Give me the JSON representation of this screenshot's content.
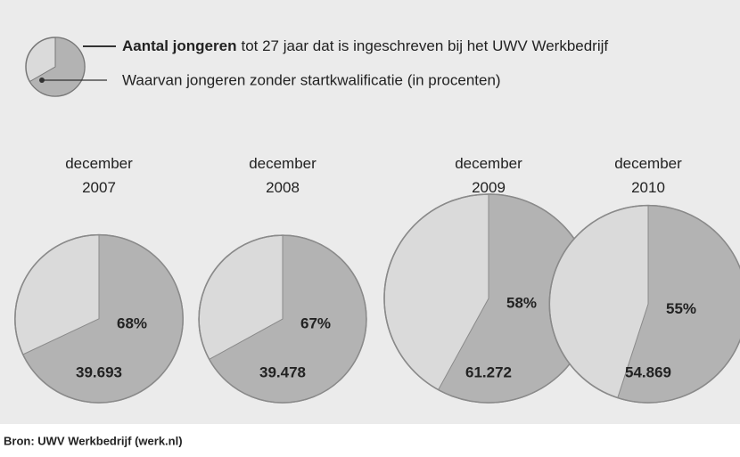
{
  "chart_data": {
    "type": "pie",
    "size_label_bold": "Aantal jongeren",
    "size_label_rest": "tot 27 jaar dat is ingeschreven bij het UWV Werkbedrijf",
    "share_label": "Waarvan jongeren zonder startkwalificatie (in procenten)",
    "categories": [
      "december\n2007",
      "december\n2008",
      "december\n2009",
      "december\n2010"
    ],
    "values": [
      68,
      67,
      58,
      55
    ],
    "value_labels": [
      "68%",
      "67%",
      "58%",
      "55%"
    ],
    "totals": [
      39693,
      39478,
      61272,
      54869
    ],
    "total_labels": [
      "39.693",
      "39.478",
      "61.272",
      "54.869"
    ],
    "colors": {
      "share": "#b3b3b3",
      "rest": "#dadada"
    },
    "source": "Bron: UWV Werkbedrijf (werk.nl)"
  }
}
